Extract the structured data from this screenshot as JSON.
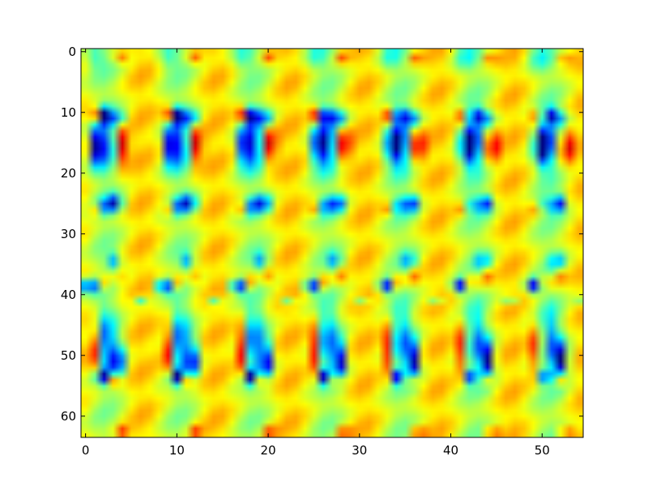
{
  "chart_data": {
    "type": "heatmap",
    "title": "",
    "xlabel": "",
    "ylabel": "",
    "colormap": "jet",
    "interpolation": "bilinear",
    "grid": false,
    "legend": "none",
    "columns": 55,
    "rows": 64,
    "xlim": [
      -0.5,
      54.5
    ],
    "ylim": [
      63.5,
      -0.5
    ],
    "x_ticks": [
      0,
      10,
      20,
      30,
      40,
      50
    ],
    "y_ticks": [
      0,
      10,
      20,
      30,
      40,
      50,
      60
    ],
    "x_tick_labels": [
      "0",
      "10",
      "20",
      "30",
      "40",
      "50"
    ],
    "y_tick_labels": [
      "0",
      "10",
      "20",
      "30",
      "40",
      "50",
      "60"
    ],
    "pattern": {
      "repeat_period_columns": 8.1,
      "background_value": 0.6,
      "features": [
        {
          "dx": 1.0,
          "row": 10.5,
          "value": 0.95,
          "sx": 0.5,
          "sy": 0.9
        },
        {
          "dx": 2.0,
          "row": 10.5,
          "value": 0.05,
          "sx": 0.5,
          "sy": 0.9
        },
        {
          "dx": 3.5,
          "row": 11.0,
          "value": 0.3,
          "sx": 0.6,
          "sy": 0.9
        },
        {
          "dx": 1.2,
          "row": 15.5,
          "value": 0.05,
          "sx": 0.45,
          "sy": 2.2
        },
        {
          "dx": 2.2,
          "row": 15.0,
          "value": 0.3,
          "sx": 0.7,
          "sy": 3.0
        },
        {
          "dx": 4.0,
          "row": 15.5,
          "value": 0.97,
          "sx": 0.5,
          "sy": 2.2
        },
        {
          "dx": 3.2,
          "row": 25.0,
          "value": 0.1,
          "sx": 0.5,
          "sy": 1.0
        },
        {
          "dx": 1.8,
          "row": 25.5,
          "value": 0.3,
          "sx": 0.5,
          "sy": 1.0
        },
        {
          "dx": 1.0,
          "row": 26.0,
          "value": 0.8,
          "sx": 0.5,
          "sy": 0.8
        },
        {
          "dx": 3.0,
          "row": 34.5,
          "value": 0.3,
          "sx": 0.5,
          "sy": 1.0
        },
        {
          "dx": 3.5,
          "row": 37.0,
          "value": 0.78,
          "sx": 0.5,
          "sy": 1.0
        },
        {
          "dx": 0.5,
          "row": 38.5,
          "value": 0.05,
          "sx": 0.55,
          "sy": 0.8
        },
        {
          "dx": 1.8,
          "row": 38.0,
          "value": 0.8,
          "sx": 0.5,
          "sy": 0.9
        },
        {
          "dx": 6.0,
          "row": 41.0,
          "value": 0.35,
          "sx": 0.5,
          "sy": 0.5
        },
        {
          "dx": 0.8,
          "row": 49.0,
          "value": 0.95,
          "sx": 0.45,
          "sy": 3.0
        },
        {
          "dx": 2.2,
          "row": 47.5,
          "value": 0.3,
          "sx": 0.7,
          "sy": 3.5
        },
        {
          "dx": 3.5,
          "row": 51.0,
          "value": 0.05,
          "sx": 0.45,
          "sy": 2.2
        },
        {
          "dx": 1.8,
          "row": 53.5,
          "value": 0.1,
          "sx": 0.5,
          "sy": 0.8
        },
        {
          "dx": 3.2,
          "row": 54.0,
          "value": 0.95,
          "sx": 0.5,
          "sy": 0.8
        },
        {
          "dx": 1.0,
          "row": 0.8,
          "value": 0.45,
          "sx": 0.8,
          "sy": 1.5
        },
        {
          "dx": 4.0,
          "row": 62.5,
          "value": 0.85,
          "sx": 0.5,
          "sy": 0.7
        },
        {
          "dx": 3.8,
          "row": 1.0,
          "value": 0.8,
          "sx": 0.5,
          "sy": 0.7
        }
      ]
    }
  }
}
